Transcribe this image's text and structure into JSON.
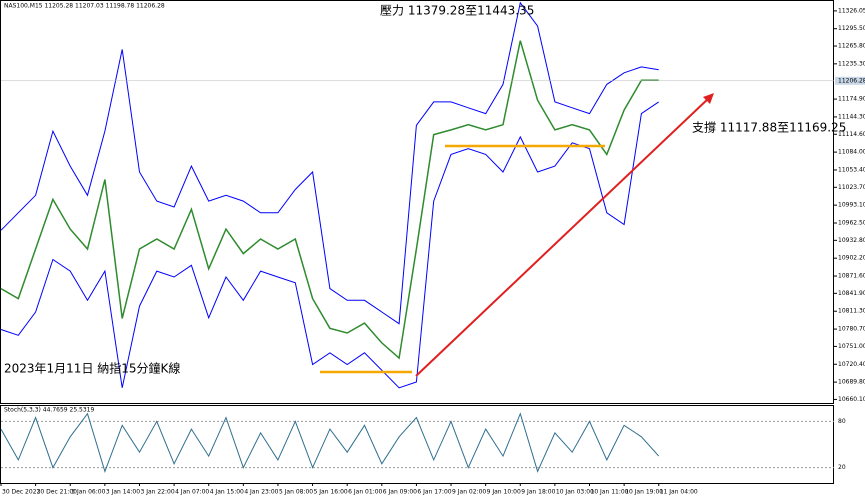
{
  "chart_data": {
    "type": "line",
    "title": "NAS100,M15  11205.28 11207.03 11198.78 11206.28",
    "annotations": [
      "壓力 11379.28至11443.35",
      "支撐 11117.88至11169.25",
      "2023年1月11日 納指15分鐘K線"
    ],
    "current_price": 11206.28,
    "x": [
      0,
      16,
      32,
      48,
      64,
      80,
      96,
      112,
      128,
      144,
      160,
      176,
      192,
      208,
      224,
      240,
      256,
      272,
      288,
      304,
      320,
      336,
      352,
      368,
      384,
      400,
      416,
      432,
      448,
      464,
      480,
      496,
      512,
      528,
      544,
      560,
      576,
      592,
      608
    ],
    "xlim": [
      0,
      770
    ],
    "xticks": [
      {
        "value": 0,
        "label": "30 Dec 2022"
      },
      {
        "value": 32,
        "label": "30 Dec 21:00"
      },
      {
        "value": 64,
        "label": "3 Jan 06:00"
      },
      {
        "value": 96,
        "label": "3 Jan 14:00"
      },
      {
        "value": 128,
        "label": "3 Jan 22:00"
      },
      {
        "value": 160,
        "label": "4 Jan 07:00"
      },
      {
        "value": 192,
        "label": "4 Jan 15:00"
      },
      {
        "value": 224,
        "label": "4 Jan 23:00"
      },
      {
        "value": 256,
        "label": "5 Jan 08:00"
      },
      {
        "value": 288,
        "label": "5 Jan 16:00"
      },
      {
        "value": 320,
        "label": "6 Jan 01:00"
      },
      {
        "value": 352,
        "label": "6 Jan 09:00"
      },
      {
        "value": 384,
        "label": "6 Jan 17:00"
      },
      {
        "value": 416,
        "label": "9 Jan 02:00"
      },
      {
        "value": 448,
        "label": "9 Jan 10:00"
      },
      {
        "value": 480,
        "label": "9 Jan 18:00"
      },
      {
        "value": 512,
        "label": "10 Jan 03:00"
      },
      {
        "value": 544,
        "label": "10 Jan 11:00"
      },
      {
        "value": 576,
        "label": "10 Jan 19:00"
      },
      {
        "value": 608,
        "label": "11 Jan 04:00"
      }
    ],
    "ylim": [
      10654,
      11343
    ],
    "yticks": [
      11326.05,
      {
        "value": 11295.5,
        "label": "11295.50"
      },
      {
        "value": 11265.8,
        "label": "11265.80"
      },
      {
        "value": 11235.3,
        "label": "11235.30"
      },
      {
        "value": 11174.9,
        "label": "11174.90"
      },
      {
        "value": 11144.3,
        "label": "11144.30"
      },
      {
        "value": 11114.6,
        "label": "11114.60"
      },
      {
        "value": 11084,
        "label": "11084.00"
      },
      {
        "value": 11053.4,
        "label": "11053.40"
      },
      {
        "value": 11023.7,
        "label": "11023.70"
      },
      {
        "value": 10993.1,
        "label": "10993.10"
      },
      {
        "value": 10962.5,
        "label": "10962.50"
      },
      {
        "value": 10932.8,
        "label": "10932.80"
      },
      {
        "value": 10902.2,
        "label": "10902.20"
      },
      {
        "value": 10871.6,
        "label": "10871.60"
      },
      {
        "value": 10841.9,
        "label": "10841.90"
      },
      {
        "value": 10811.3,
        "label": "10811.30"
      },
      {
        "value": 10780.7,
        "label": "10780.70"
      },
      {
        "value": 10751,
        "label": "10751.00"
      },
      {
        "value": 10720.4,
        "label": "10720.40"
      },
      {
        "value": 10689.8,
        "label": "10689.80"
      },
      {
        "value": 10660.1,
        "label": "10660.10"
      }
    ],
    "series": [
      {
        "name": "NAS100,M15",
        "color": "#2e8b2e",
        "values": [
          10850,
          10833,
          10918,
          11003,
          10952,
          10918,
          11037,
          10799,
          10918,
          10935,
          10918,
          10986,
          10884,
          10952,
          10910,
          10935,
          10918,
          10935,
          10833,
          10782,
          10774,
          10791,
          10757,
          10731,
          10918,
          11114,
          11122,
          11131,
          11122,
          11131,
          11275,
          11173,
          11122,
          11131,
          11122,
          11080,
          11156,
          11207,
          11207
        ]
      },
      {
        "name": "Bands upper",
        "color": "#0000ff",
        "values": [
          10950,
          10980,
          11010,
          11120,
          11060,
          11010,
          11120,
          11260,
          11050,
          11000,
          10990,
          11060,
          11000,
          11010,
          11000,
          10980,
          10980,
          11020,
          11050,
          10850,
          10830,
          10830,
          10810,
          10790,
          11130,
          11170,
          11170,
          11160,
          11150,
          11200,
          11340,
          11300,
          11170,
          11160,
          11150,
          11200,
          11220,
          11230,
          11225
        ]
      },
      {
        "name": "Bands lower",
        "color": "#0000ff",
        "values": [
          10780,
          10770,
          10810,
          10900,
          10880,
          10830,
          10880,
          10680,
          10820,
          10880,
          10870,
          10890,
          10800,
          10870,
          10830,
          10880,
          10870,
          10860,
          10720,
          10740,
          10720,
          10740,
          10710,
          10680,
          10690,
          11000,
          11080,
          11090,
          11080,
          11050,
          11110,
          11050,
          11060,
          11100,
          11090,
          10980,
          10960,
          11150,
          11170
        ]
      }
    ],
    "indicator": {
      "title": "Stoch(5,3,3) 44.7659 25.5319",
      "ylim": [
        0,
        100
      ],
      "yticks": [
        20,
        80
      ],
      "color": "#2f6f8f",
      "values": [
        70,
        30,
        85,
        20,
        60,
        90,
        15,
        75,
        40,
        80,
        25,
        70,
        35,
        85,
        20,
        65,
        30,
        80,
        20,
        70,
        40,
        75,
        25,
        60,
        85,
        30,
        80,
        20,
        70,
        35,
        90,
        15,
        65,
        40,
        80,
        30,
        75,
        60,
        35
      ]
    }
  }
}
